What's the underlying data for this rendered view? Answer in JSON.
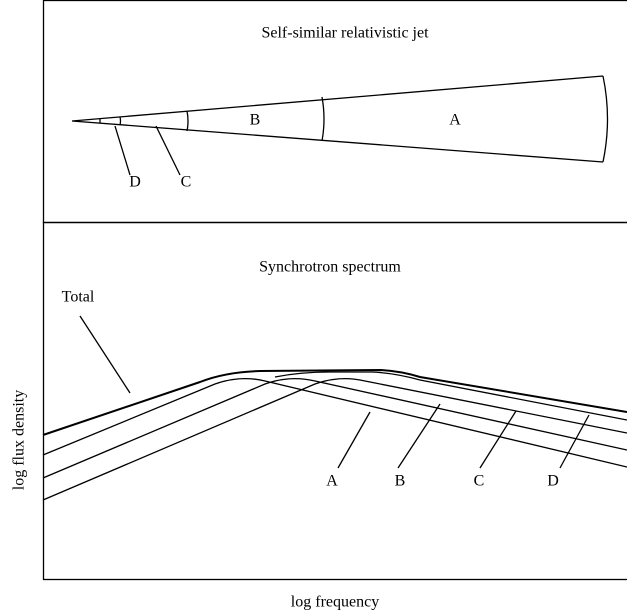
{
  "top_panel": {
    "title": "Self-similar relativistic jet",
    "labels": [
      "A",
      "B",
      "C",
      "D"
    ]
  },
  "bottom_panel": {
    "title": "Synchrotron spectrum",
    "total_label": "Total",
    "curve_labels": [
      "A",
      "B",
      "C",
      "D"
    ],
    "y_axis_label": "log flux density",
    "x_axis_label": "log frequency"
  }
}
